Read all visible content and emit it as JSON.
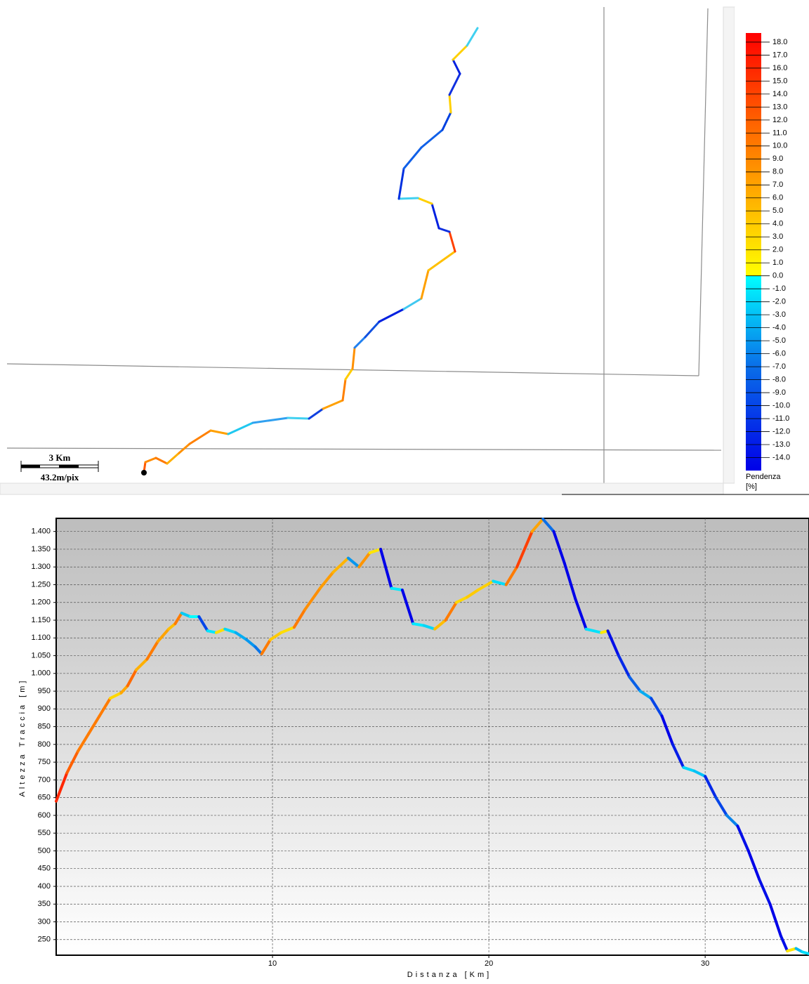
{
  "map": {
    "scale_label": "3 Km",
    "resolution_label": "43.2m/pix"
  },
  "chart_data": [
    {
      "type": "colorbar",
      "title": "Pendenza",
      "unit": "[%]",
      "clim": [
        -15,
        18.7
      ],
      "stops": [
        {
          "value": -15,
          "color": "#0000e8"
        },
        {
          "value": -7,
          "color": "#0a6ee8"
        },
        {
          "value": 0,
          "color": "#00ffff"
        },
        {
          "value": 0,
          "color": "#ffff00"
        },
        {
          "value": 6,
          "color": "#ffb000"
        },
        {
          "value": 12,
          "color": "#ff6000"
        },
        {
          "value": 18.7,
          "color": "#ff0000"
        }
      ],
      "ticks": [
        {
          "value": 18,
          "label": "18.0"
        },
        {
          "value": 17,
          "label": "17.0"
        },
        {
          "value": 16,
          "label": "16.0"
        },
        {
          "value": 15,
          "label": "15.0"
        },
        {
          "value": 14,
          "label": "14.0"
        },
        {
          "value": 13,
          "label": "13.0"
        },
        {
          "value": 12,
          "label": "12.0"
        },
        {
          "value": 11,
          "label": "11.0"
        },
        {
          "value": 10,
          "label": "10.0"
        },
        {
          "value": 9,
          "label": "9.0"
        },
        {
          "value": 8,
          "label": "8.0"
        },
        {
          "value": 7,
          "label": "7.0"
        },
        {
          "value": 6,
          "label": "6.0"
        },
        {
          "value": 5,
          "label": "5.0"
        },
        {
          "value": 4,
          "label": "4.0"
        },
        {
          "value": 3,
          "label": "3.0"
        },
        {
          "value": 2,
          "label": "2.0"
        },
        {
          "value": 1,
          "label": "1.0"
        },
        {
          "value": 0,
          "label": "0.0"
        },
        {
          "value": -1,
          "label": "-1.0"
        },
        {
          "value": -2,
          "label": "-2.0"
        },
        {
          "value": -3,
          "label": "-3.0"
        },
        {
          "value": -4,
          "label": "-4.0"
        },
        {
          "value": -5,
          "label": "-5.0"
        },
        {
          "value": -6,
          "label": "-6.0"
        },
        {
          "value": -7,
          "label": "-7.0"
        },
        {
          "value": -8,
          "label": "-8.0"
        },
        {
          "value": -9,
          "label": "-9.0"
        },
        {
          "value": -10,
          "label": "-10.0"
        },
        {
          "value": -11,
          "label": "-11.0"
        },
        {
          "value": -12,
          "label": "-12.0"
        },
        {
          "value": -13,
          "label": "-13.0"
        },
        {
          "value": -14,
          "label": "-14.0"
        }
      ]
    },
    {
      "type": "line",
      "xlabel": "Distanza [Km]",
      "ylabel": "Altezza Traccia [m]",
      "x": [
        0,
        0.5,
        1,
        1.5,
        2,
        2.5,
        3,
        3.3,
        3.7,
        4.2,
        4.7,
        5.2,
        5.5,
        5.8,
        6.2,
        6.6,
        7,
        7.4,
        7.8,
        8.3,
        8.8,
        9.2,
        9.5,
        9.9,
        10.4,
        11,
        11.5,
        12.2,
        12.8,
        13.5,
        14,
        14.5,
        15,
        15.5,
        16,
        16.5,
        17,
        17.5,
        18,
        18.5,
        19,
        19.5,
        20.2,
        20.8,
        21.3,
        22,
        22.5,
        23,
        23.5,
        24,
        24.5,
        25.2,
        25.5,
        26,
        26.5,
        27,
        27.5,
        28,
        28.5,
        29,
        29.5,
        30,
        30.5,
        31,
        31.5,
        32,
        32.5,
        33,
        33.5,
        33.8,
        34.2,
        34.5,
        34.8
      ],
      "values": [
        640,
        720,
        780,
        830,
        880,
        930,
        945,
        965,
        1010,
        1040,
        1090,
        1125,
        1140,
        1170,
        1160,
        1160,
        1120,
        1115,
        1125,
        1115,
        1095,
        1075,
        1055,
        1095,
        1115,
        1130,
        1180,
        1240,
        1285,
        1325,
        1300,
        1340,
        1350,
        1240,
        1235,
        1140,
        1135,
        1125,
        1150,
        1200,
        1215,
        1235,
        1260,
        1250,
        1300,
        1400,
        1435,
        1400,
        1310,
        1210,
        1125,
        1115,
        1120,
        1050,
        990,
        950,
        930,
        880,
        800,
        735,
        725,
        710,
        650,
        600,
        570,
        500,
        420,
        350,
        260,
        218,
        225,
        215,
        210
      ],
      "xlim": [
        0,
        34.8
      ],
      "ylim": [
        206,
        1437
      ],
      "xticks": [
        10,
        20,
        30
      ],
      "yticks": [
        250,
        300,
        350,
        400,
        450,
        500,
        550,
        600,
        650,
        700,
        750,
        800,
        850,
        900,
        950,
        {
          "value": 1000,
          "label": "1.000"
        },
        {
          "value": 1050,
          "label": "1.050"
        },
        {
          "value": 1100,
          "label": "1.100"
        },
        {
          "value": 1150,
          "label": "1.150"
        },
        {
          "value": 1200,
          "label": "1.200"
        },
        {
          "value": 1250,
          "label": "1.250"
        },
        {
          "value": 1300,
          "label": "1.300"
        },
        {
          "value": 1350,
          "label": "1.350"
        },
        {
          "value": 1400,
          "label": "1.400"
        }
      ],
      "grid": true
    }
  ]
}
